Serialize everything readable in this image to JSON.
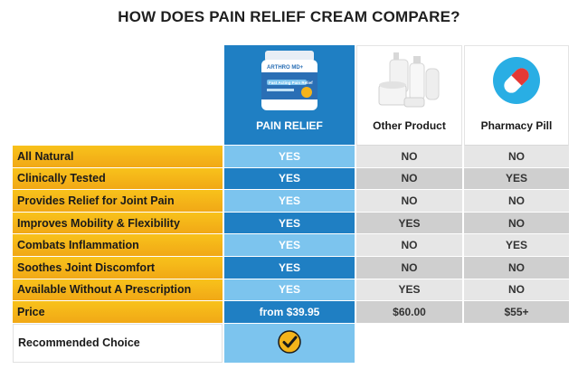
{
  "title": "HOW DOES PAIN RELIEF CREAM COMPARE?",
  "columns": {
    "ours": "PAIN RELIEF",
    "other": "Other Product",
    "pill": "Pharmacy Pill"
  },
  "product_jar_text": {
    "brand": "ARTHRO MD+",
    "line": "Fast Acting Pain Relief"
  },
  "rows": [
    {
      "label": "All Natural",
      "ours": "YES",
      "other": "NO",
      "pill": "NO"
    },
    {
      "label": "Clinically Tested",
      "ours": "YES",
      "other": "NO",
      "pill": "YES"
    },
    {
      "label": "Provides Relief for Joint Pain",
      "ours": "YES",
      "other": "NO",
      "pill": "NO"
    },
    {
      "label": "Improves Mobility & Flexibility",
      "ours": "YES",
      "other": "YES",
      "pill": "NO"
    },
    {
      "label": "Combats Inflammation",
      "ours": "YES",
      "other": "NO",
      "pill": "YES"
    },
    {
      "label": "Soothes Joint Discomfort",
      "ours": "YES",
      "other": "NO",
      "pill": "NO"
    },
    {
      "label": "Available Without A Prescription",
      "ours": "YES",
      "other": "YES",
      "pill": "NO"
    },
    {
      "label": "Price",
      "ours": "from $39.95",
      "other": "$60.00",
      "pill": "$55+"
    }
  ],
  "recommended_label": "Recommended Choice",
  "icons": {
    "jar": "product-jar-icon",
    "bottles": "cosmetic-bottles-icon",
    "pill": "capsule-pill-icon",
    "check": "checkmark-badge-icon"
  },
  "colors": {
    "label_bg": "#f4b41a",
    "ours_dark": "#1f7fc3",
    "ours_light": "#7cc4ee",
    "other_light": "#e6e6e6",
    "other_dark": "#cfcfcf"
  }
}
